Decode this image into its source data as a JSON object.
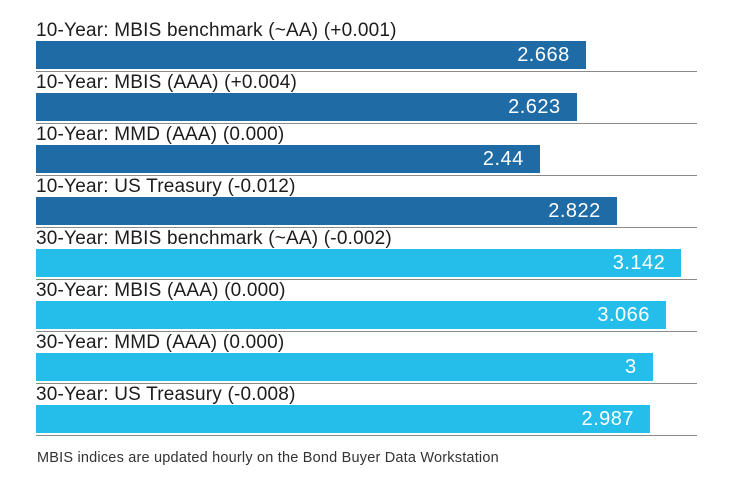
{
  "chart_data": {
    "type": "bar",
    "orientation": "horizontal",
    "title": "",
    "xlabel": "",
    "ylabel": "",
    "xlim": [
      -0.06,
      3.22
    ],
    "grid": false,
    "legend_position": "none",
    "axis_line_color": "#8a8a8a",
    "label_text_color": "#1c1c1c",
    "value_label_color": "#ffffff",
    "series_colors": {
      "10-year": "#1e6ba6",
      "30-year": "#25bde9"
    },
    "rows": [
      {
        "label": "10-Year: MBIS benchmark (~AA) (+0.001)",
        "value": 2.668,
        "value_label": "2.668",
        "group": "10-year"
      },
      {
        "label": "10-Year: MBIS (AAA) (+0.004)",
        "value": 2.623,
        "value_label": "2.623",
        "group": "10-year"
      },
      {
        "label": "10-Year: MMD (AAA) (0.000)",
        "value": 2.44,
        "value_label": "2.44",
        "group": "10-year"
      },
      {
        "label": "10-Year: US Treasury (-0.012)",
        "value": 2.822,
        "value_label": "2.822",
        "group": "10-year"
      },
      {
        "label": "30-Year: MBIS benchmark (~AA) (-0.002)",
        "value": 3.142,
        "value_label": "3.142",
        "group": "30-year"
      },
      {
        "label": "30-Year: MBIS (AAA) (0.000)",
        "value": 3.066,
        "value_label": "3.066",
        "group": "30-year"
      },
      {
        "label": "30-Year: MMD (AAA) (0.000)",
        "value": 3,
        "value_label": "3",
        "group": "30-year"
      },
      {
        "label": "30-Year: US Treasury (-0.008)",
        "value": 2.987,
        "value_label": "2.987",
        "group": "30-year"
      }
    ],
    "footer_note": "MBIS indices are updated hourly on the Bond Buyer Data Workstation"
  }
}
